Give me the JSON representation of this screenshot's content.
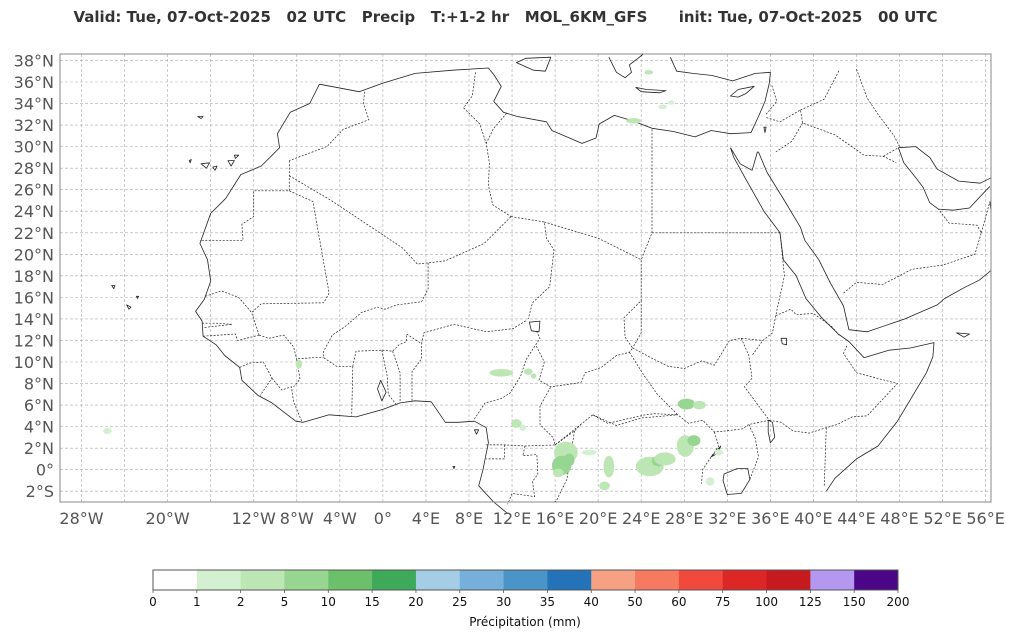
{
  "title": "Valid: Tue, 07-Oct-2025   02 UTC   Precip   T:+1-2 hr   MOL_6KM_GFS      init: Tue, 07-Oct-2025   00 UTC",
  "map": {
    "lat_labels": [
      "38°N",
      "36°N",
      "34°N",
      "32°N",
      "30°N",
      "28°N",
      "26°N",
      "24°N",
      "22°N",
      "20°N",
      "18°N",
      "16°N",
      "14°N",
      "12°N",
      "10°N",
      "8°N",
      "6°N",
      "4°N",
      "2°N",
      "0°",
      "2°S"
    ],
    "lat_values": [
      38,
      36,
      34,
      32,
      30,
      28,
      26,
      24,
      22,
      20,
      18,
      16,
      14,
      12,
      10,
      8,
      6,
      4,
      2,
      0,
      -2
    ],
    "lon_labels": [
      "28°W",
      "20°W",
      "12°W",
      "8°W",
      "4°W",
      "0°",
      "4°E",
      "8°E",
      "12°E",
      "16°E",
      "20°E",
      "24°E",
      "28°E",
      "32°E",
      "36°E",
      "40°E",
      "44°E",
      "48°E",
      "52°E",
      "56°E"
    ],
    "lon_values": [
      -28,
      -20,
      -12,
      -8,
      -4,
      0,
      4,
      8,
      12,
      16,
      20,
      24,
      28,
      32,
      36,
      40,
      44,
      48,
      52,
      56
    ],
    "grid_lons": [
      -28,
      -24,
      -20,
      -16,
      -12,
      -8,
      -4,
      0,
      4,
      8,
      12,
      16,
      20,
      24,
      28,
      32,
      36,
      40,
      44,
      48,
      52,
      56
    ],
    "lon_min": -30.0,
    "lon_max": 56.5,
    "lat_min": -3.0,
    "lat_max": 38.6,
    "land_color": "#ffffff",
    "line_color": "#222222",
    "grid_color": "#aaaaaa"
  },
  "colorbar": {
    "tick_labels": [
      "0",
      "1",
      "2",
      "5",
      "10",
      "15",
      "20",
      "25",
      "30",
      "35",
      "40",
      "50",
      "60",
      "75",
      "100",
      "125",
      "150",
      "200"
    ],
    "colors": [
      "#ffffff",
      "#d3f0d0",
      "#bde6b5",
      "#97d690",
      "#6cc06b",
      "#3fa95a",
      "#a6cde6",
      "#74b0d9",
      "#4a94c8",
      "#2473b8",
      "#f7a184",
      "#f67a5f",
      "#ef4a3b",
      "#dd2626",
      "#c61a1e",
      "#b497ee",
      "#4b0587"
    ],
    "label": "Précipitation (mm)"
  }
}
